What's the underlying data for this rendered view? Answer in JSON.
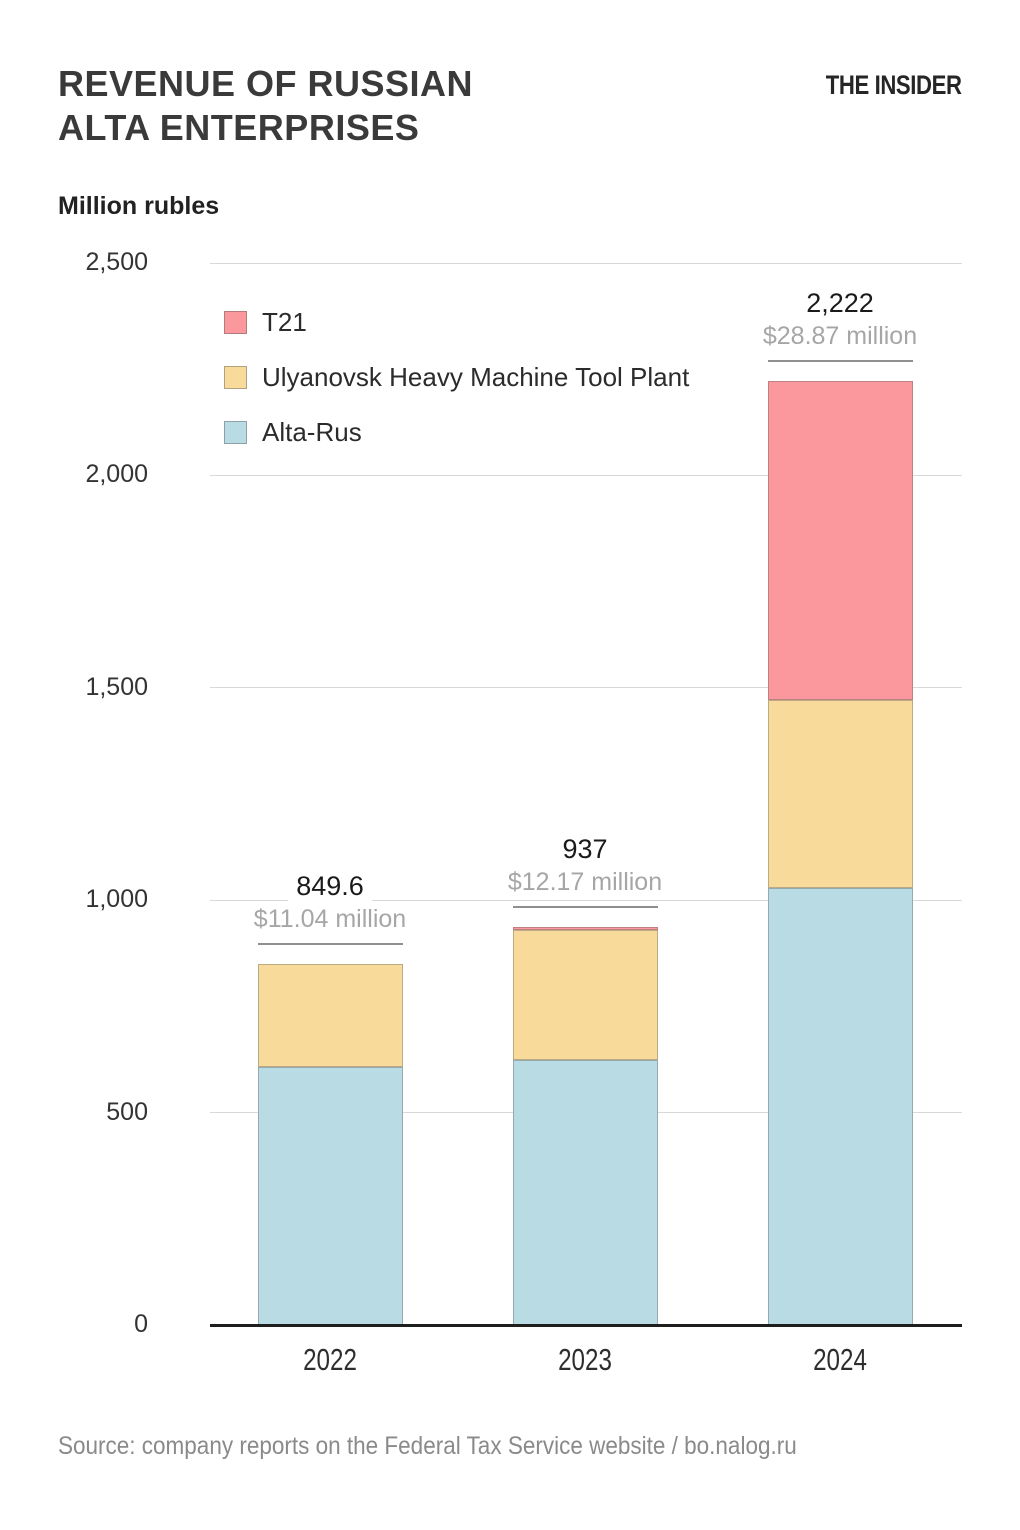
{
  "header": {
    "title_line1": "REVENUE OF RUSSIAN",
    "title_line2": "ALTA ENTERPRISES",
    "logo": "THE INSIDER",
    "units_label": "Million rubles"
  },
  "legend": {
    "items": [
      {
        "label": "T21",
        "color": "#fa989d"
      },
      {
        "label": "Ulyanovsk Heavy Machine Tool Plant",
        "color": "#f8db9b"
      },
      {
        "label": "Alta-Rus",
        "color": "#b9dbe4"
      }
    ]
  },
  "source": "Source: company reports on the Federal Tax Service website / bo.nalog.ru",
  "chart_data": {
    "type": "bar",
    "stacked": true,
    "title": "Revenue of Russian Alta enterprises",
    "ylabel": "Million rubles",
    "categories": [
      "2022",
      "2023",
      "2024"
    ],
    "series": [
      {
        "name": "Alta-Rus",
        "color": "#b9dbe4",
        "values": [
          608,
          623,
          1028
        ]
      },
      {
        "name": "Ulyanovsk Heavy Machine Tool Plant",
        "color": "#f8db9b",
        "values": [
          241.6,
          306,
          444
        ]
      },
      {
        "name": "T21",
        "color": "#fa989d",
        "values": [
          0,
          8,
          750
        ]
      }
    ],
    "totals": [
      849.6,
      937,
      2222
    ],
    "total_labels": [
      "849.6",
      "937",
      "2,222"
    ],
    "usd_labels": [
      "$11.04 million",
      "$12.17 million",
      "$28.87 million"
    ],
    "ylim": [
      0,
      2500
    ],
    "yticks": [
      0,
      500,
      1000,
      1500,
      2000,
      2500
    ],
    "ytick_labels": [
      "0",
      "500",
      "1,000",
      "1,500",
      "2,000",
      "2,500"
    ],
    "grid": true,
    "legend_position": "top-left-inside",
    "legend_order": [
      "T21",
      "Ulyanovsk Heavy Machine Tool Plant",
      "Alta-Rus"
    ]
  },
  "colors": {
    "axis": "#1e1e1e",
    "gridline": "#d8d8d8",
    "total_label": "#1a1a1a",
    "usd_label": "#a6a6a6",
    "bar_rule": "#8f8f8f",
    "background": "#ffffff"
  }
}
